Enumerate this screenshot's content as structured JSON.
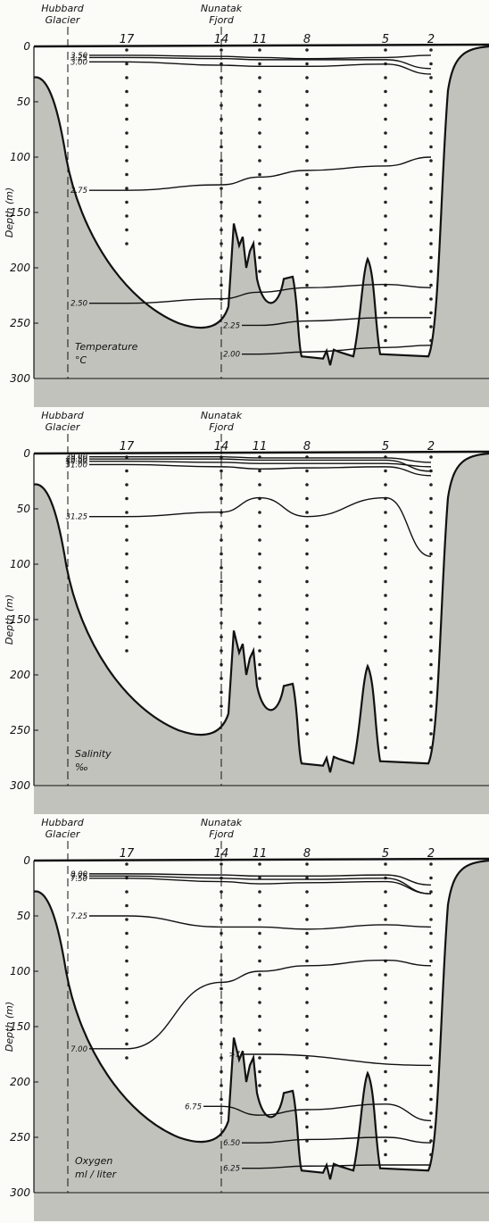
{
  "colors": {
    "ink": "#111111",
    "bottom_fill": "#b9b9b4",
    "background": "#fbfbf8"
  },
  "chart_data": [
    {
      "type": "contour",
      "place_labels": [
        "Hubbard Glacier",
        "Nunatak Fjord"
      ],
      "ylabel": "Depth (m)",
      "ylim": [
        0,
        300
      ],
      "y_ticks": [
        "0",
        "50",
        "100",
        "150",
        "200",
        "250",
        "300"
      ],
      "stations": [
        "17",
        "14",
        "11",
        "8",
        "5",
        "2"
      ],
      "annotation": [
        "Temperature",
        "°C"
      ],
      "contours": [
        {
          "label": "3.50",
          "depth_m": [
            8,
            9,
            10,
            11,
            10,
            8
          ]
        },
        {
          "label": "3.25",
          "depth_m": [
            10,
            11,
            12,
            12,
            12,
            20
          ]
        },
        {
          "label": "3.00",
          "depth_m": [
            14,
            17,
            18,
            18,
            16,
            25
          ]
        },
        {
          "label": "2.75",
          "depth_m": [
            130,
            125,
            118,
            112,
            108,
            100
          ]
        },
        {
          "label": "2.50",
          "depth_m": [
            232,
            228,
            222,
            218,
            215,
            218
          ]
        },
        {
          "label": "2.25",
          "depth_m": [
            null,
            null,
            252,
            248,
            245,
            245
          ]
        },
        {
          "label": "2.00",
          "depth_m": [
            null,
            null,
            278,
            276,
            272,
            270
          ]
        }
      ]
    },
    {
      "type": "contour",
      "place_labels": [
        "Hubbard Glacier",
        "Nunatak Fjord"
      ],
      "ylabel": "Depth (m)",
      "ylim": [
        0,
        300
      ],
      "y_ticks": [
        "0",
        "50",
        "100",
        "150",
        "200",
        "250",
        "300"
      ],
      "stations": [
        "17",
        "14",
        "11",
        "8",
        "5",
        "2"
      ],
      "annotation": [
        "Salinity",
        "‰"
      ],
      "contours": [
        {
          "label": "29.00",
          "depth_m": [
            3,
            3,
            4,
            4,
            4,
            8
          ]
        },
        {
          "label": "29.50",
          "depth_m": [
            5,
            5,
            6,
            6,
            6,
            16
          ]
        },
        {
          "label": "30.00",
          "depth_m": [
            7,
            8,
            9,
            9,
            9,
            12
          ]
        },
        {
          "label": "31.00",
          "depth_m": [
            10,
            12,
            14,
            13,
            12,
            20
          ]
        },
        {
          "label": "31.25",
          "depth_m": [
            57,
            53,
            40,
            57,
            40,
            93
          ]
        }
      ]
    },
    {
      "type": "contour",
      "place_labels": [
        "Hubbard Glacier",
        "Nunatak Fjord"
      ],
      "ylabel": "Depth (m)",
      "ylim": [
        0,
        300
      ],
      "y_ticks": [
        "0",
        "50",
        "100",
        "150",
        "200",
        "250",
        "300"
      ],
      "stations": [
        "17",
        "14",
        "11",
        "8",
        "5",
        "2"
      ],
      "annotation": [
        "Oxygen",
        "ml / liter"
      ],
      "contours": [
        {
          "label": "8.00",
          "depth_m": [
            12,
            13,
            14,
            14,
            13,
            22
          ]
        },
        {
          "label": "7.75",
          "depth_m": [
            14,
            16,
            17,
            17,
            16,
            30
          ]
        },
        {
          "label": "7.50",
          "depth_m": [
            16,
            19,
            21,
            20,
            19,
            30
          ]
        },
        {
          "label": "7.25",
          "depth_m": [
            50,
            60,
            60,
            62,
            58,
            60
          ]
        },
        {
          "label": "7.00",
          "depth_m": [
            170,
            110,
            100,
            95,
            90,
            95
          ]
        },
        {
          "label": ">7",
          "depth_m": [
            null,
            null,
            175,
            null,
            null,
            185
          ]
        },
        {
          "label": "6.75",
          "depth_m": [
            null,
            222,
            230,
            225,
            220,
            235
          ]
        },
        {
          "label": "6.50",
          "depth_m": [
            null,
            null,
            255,
            252,
            250,
            255
          ]
        },
        {
          "label": "6.25",
          "depth_m": [
            null,
            null,
            278,
            276,
            275,
            275
          ]
        }
      ]
    }
  ]
}
